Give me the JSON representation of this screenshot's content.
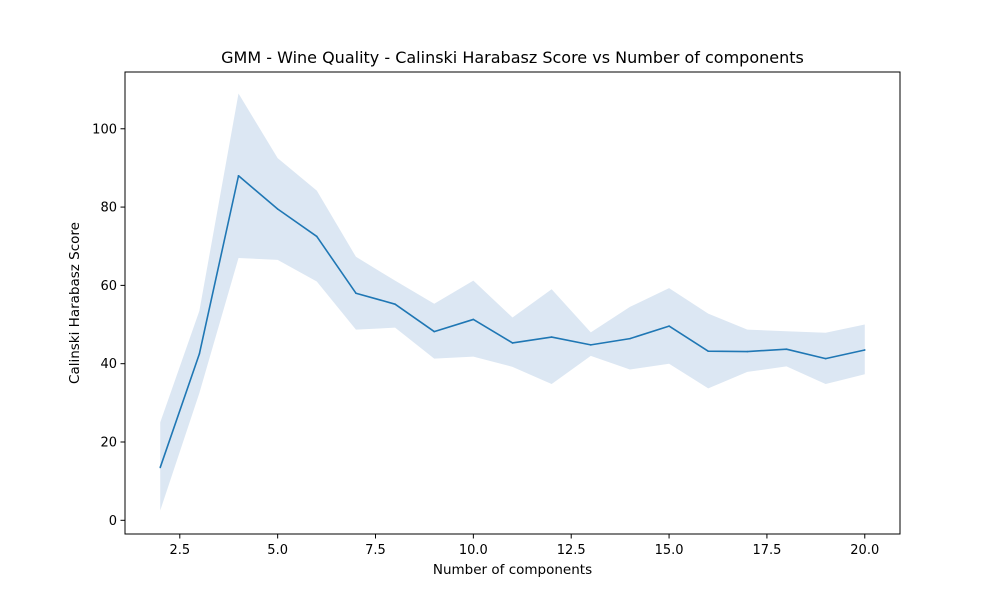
{
  "chart_data": {
    "type": "line",
    "title": "GMM - Wine Quality - Calinski Harabasz Score vs Number of components",
    "xlabel": "Number of components",
    "ylabel": "Calinski Harabasz Score",
    "xlim": [
      1.1,
      20.9
    ],
    "ylim": [
      -3.5,
      114.5
    ],
    "xticks": [
      2.5,
      5.0,
      7.5,
      10.0,
      12.5,
      15.0,
      17.5,
      20.0
    ],
    "xtick_labels": [
      "2.5",
      "5.0",
      "7.5",
      "10.0",
      "12.5",
      "15.0",
      "17.5",
      "20.0"
    ],
    "yticks": [
      0,
      20,
      40,
      60,
      80,
      100
    ],
    "ytick_labels": [
      "0",
      "20",
      "40",
      "60",
      "80",
      "100"
    ],
    "grid": false,
    "legend": false,
    "x": [
      2,
      3,
      4,
      5,
      6,
      7,
      8,
      9,
      10,
      11,
      12,
      13,
      14,
      15,
      16,
      17,
      18,
      19,
      20
    ],
    "series": [
      {
        "values": [
          13.5,
          42.5,
          88.0,
          79.5,
          72.5,
          58.0,
          55.2,
          48.2,
          51.3,
          45.3,
          46.8,
          44.8,
          46.4,
          49.6,
          43.2,
          43.1,
          43.7,
          41.3,
          43.5
        ],
        "lower": [
          2.5,
          32.5,
          67.0,
          66.5,
          61.0,
          48.7,
          49.2,
          41.3,
          41.8,
          39.2,
          34.8,
          42.0,
          38.5,
          40.0,
          33.7,
          37.9,
          39.3,
          34.8,
          37.3
        ],
        "upper": [
          25.0,
          53.5,
          109.0,
          92.5,
          84.2,
          67.3,
          61.2,
          55.3,
          61.2,
          51.8,
          59.0,
          48.0,
          54.5,
          59.3,
          52.8,
          48.7,
          48.3,
          47.9,
          50.0
        ],
        "color": "#1f77b4",
        "band_color": "#dce7f3"
      }
    ]
  }
}
